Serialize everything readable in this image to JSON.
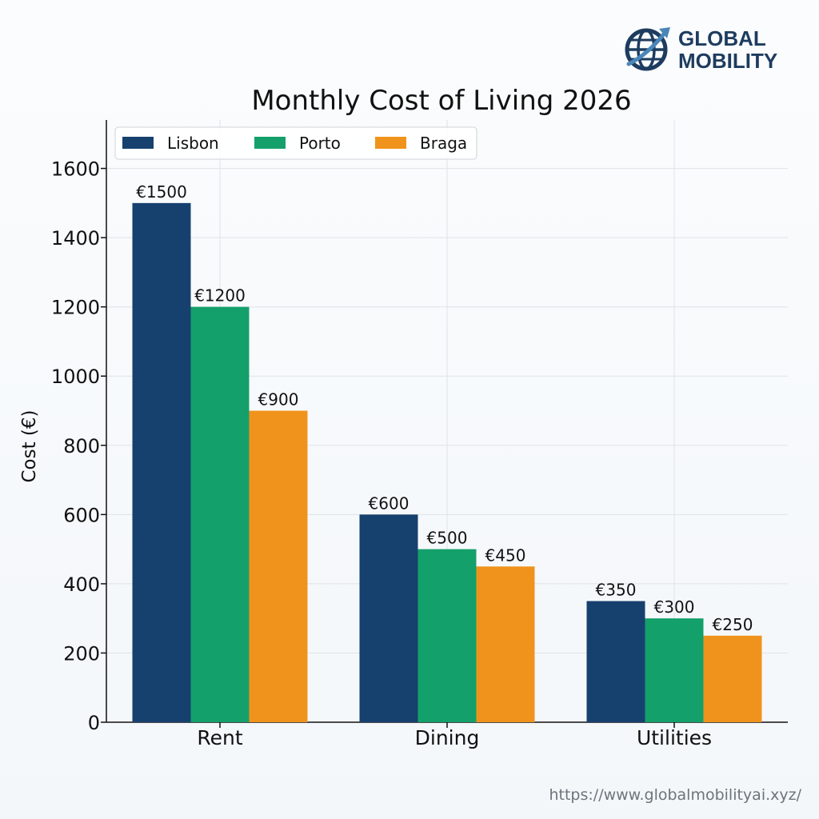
{
  "brand": {
    "line1": "GLOBAL",
    "line2": "MOBILITY",
    "logo_icon": "globe-with-arrow-icon",
    "color": "#1d3c5f"
  },
  "footer": {
    "url": "https://www.globalmobilityai.xyz/"
  },
  "chart_data": {
    "type": "bar",
    "title": "Monthly Cost of Living 2026",
    "xlabel": "",
    "ylabel": "Cost (€)",
    "ylim": [
      0,
      1740
    ],
    "yticks": [
      0,
      200,
      400,
      600,
      800,
      1000,
      1200,
      1400,
      1600
    ],
    "categories": [
      "Rent",
      "Dining",
      "Utilities"
    ],
    "series": [
      {
        "name": "Lisbon",
        "color": "#16406e",
        "values": [
          1500,
          600,
          350
        ],
        "labels": [
          "€1500",
          "€600",
          "€350"
        ]
      },
      {
        "name": "Porto",
        "color": "#14a06b",
        "values": [
          1200,
          500,
          300
        ],
        "labels": [
          "€1200",
          "€500",
          "€300"
        ]
      },
      {
        "name": "Braga",
        "color": "#f0931c",
        "values": [
          900,
          450,
          250
        ],
        "labels": [
          "€900",
          "€450",
          "€250"
        ]
      }
    ],
    "grid": true,
    "legend_position": "top-left"
  }
}
